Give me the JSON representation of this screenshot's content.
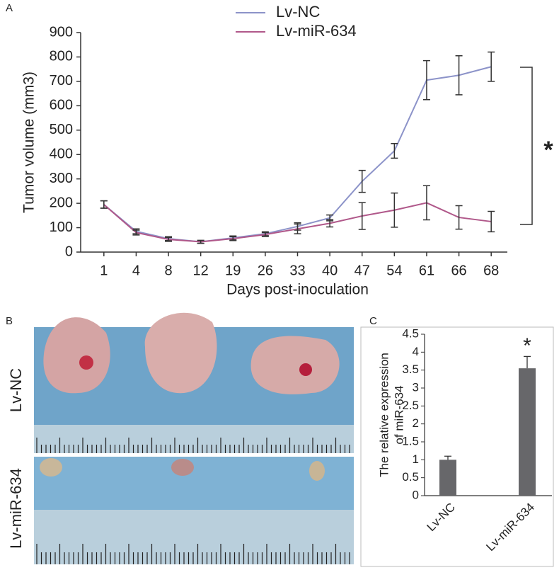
{
  "chart_data": [
    {
      "type": "line",
      "panel_label": "A",
      "x_label": "Days post-inoculation",
      "y_label": "Tumor volume (mm3)",
      "categories": [
        "1",
        "4",
        "8",
        "12",
        "19",
        "26",
        "33",
        "40",
        "47",
        "54",
        "61",
        "66",
        "68"
      ],
      "series": [
        {
          "name": "Lv-NC",
          "color": "#8c93c9",
          "values": [
            195,
            85,
            55,
            42,
            58,
            75,
            105,
            140,
            290,
            415,
            705,
            725,
            760
          ],
          "errors": [
            15,
            10,
            8,
            6,
            8,
            8,
            15,
            12,
            45,
            30,
            80,
            80,
            60
          ]
        },
        {
          "name": "Lv-miR-634",
          "color": "#b0588a",
          "values": [
            195,
            80,
            52,
            42,
            55,
            72,
            95,
            118,
            148,
            172,
            202,
            142,
            125
          ],
          "errors": [
            15,
            10,
            8,
            6,
            8,
            8,
            20,
            15,
            55,
            70,
            70,
            48,
            42
          ]
        }
      ],
      "ylim": [
        0,
        900
      ],
      "yticks": [
        0,
        100,
        200,
        300,
        400,
        500,
        600,
        700,
        800,
        900
      ],
      "annotation": "*",
      "legend": "top"
    },
    {
      "type": "photo",
      "panel_label": "B",
      "rows": [
        "Lv-NC",
        "Lv-miR-634"
      ]
    },
    {
      "type": "bar",
      "panel_label": "C",
      "y_label": [
        "The relative expression",
        "of miR-634"
      ],
      "categories": [
        "Lv-NC",
        "Lv-miR-634"
      ],
      "values": [
        1,
        3.55
      ],
      "errors": [
        0.1,
        0.33
      ],
      "color": "#67676a",
      "ylim": [
        0,
        4.5
      ],
      "yticks": [
        0,
        0.5,
        1,
        1.5,
        2,
        2.5,
        3,
        3.5,
        4,
        4.5
      ],
      "annotation": "*"
    }
  ]
}
